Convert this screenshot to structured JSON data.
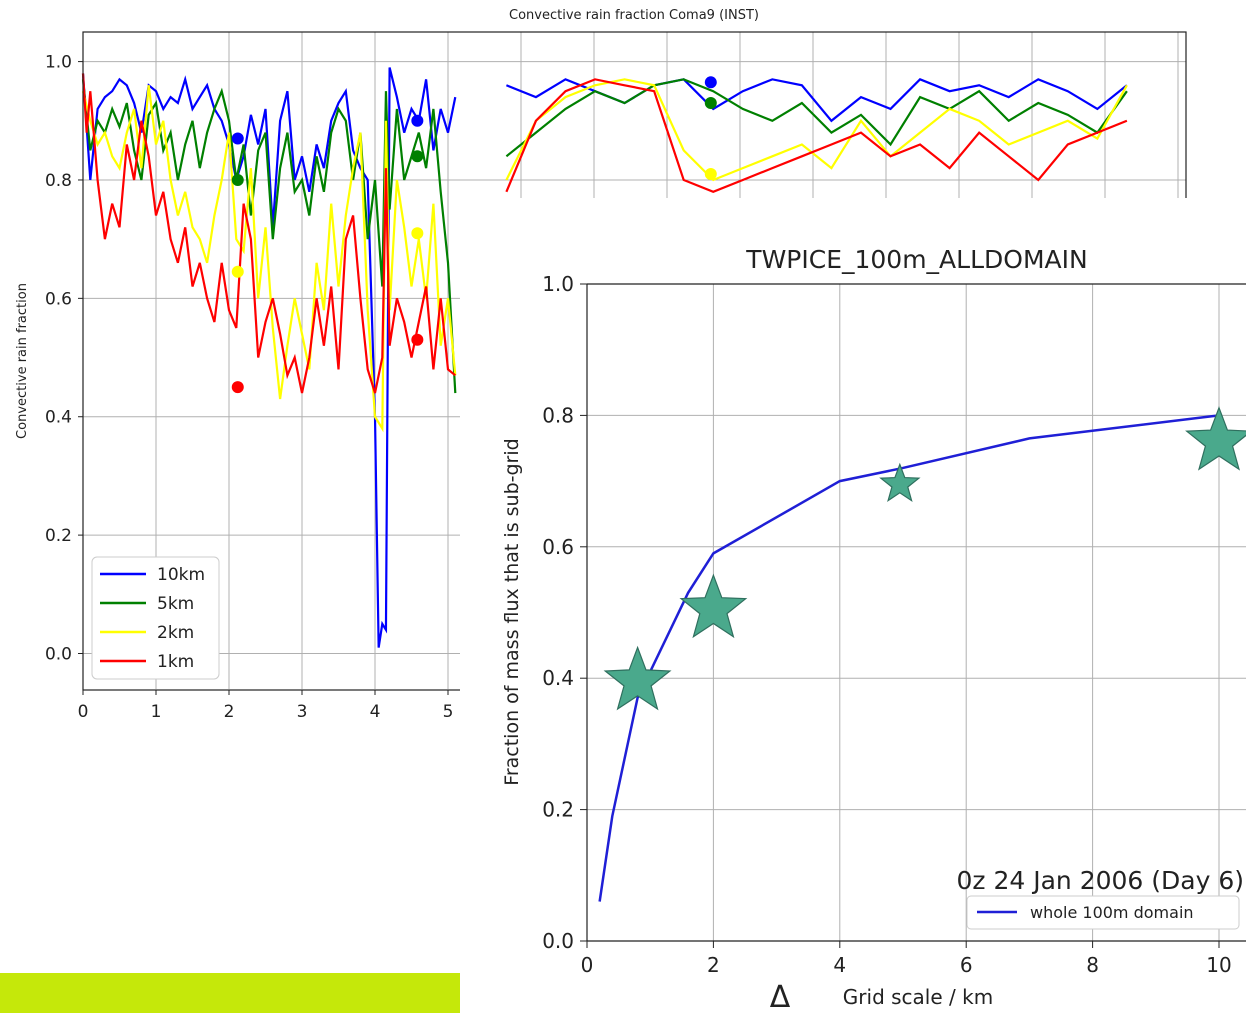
{
  "colors": {
    "accent_bar": "#c5e80a",
    "star_fill": "#4aa98c",
    "star_edge": "#2f6f5e",
    "line_blue": "#1f1fd6"
  },
  "chart_data": [
    {
      "type": "line",
      "title": "Convective rain fraction Coma9 (INST)",
      "xlabel": "",
      "ylabel": "Convective rain fraction",
      "xlim": [
        0,
        5.1
      ],
      "ylim": [
        -0.06,
        1.05
      ],
      "xticks": [
        "0",
        "1",
        "2",
        "3",
        "4",
        "5"
      ],
      "yticks": [
        "0.0",
        "0.2",
        "0.4",
        "0.6",
        "0.8",
        "1.0"
      ],
      "grid": true,
      "legend_position": "lower-left",
      "series": [
        {
          "name": "10km",
          "color": "#0000ff",
          "x": [
            0,
            0.1,
            0.2,
            0.3,
            0.4,
            0.5,
            0.6,
            0.7,
            0.8,
            0.9,
            1.0,
            1.1,
            1.2,
            1.3,
            1.4,
            1.5,
            1.6,
            1.7,
            1.8,
            1.9,
            2.0,
            2.1,
            2.2,
            2.3,
            2.4,
            2.5,
            2.6,
            2.7,
            2.8,
            2.9,
            3.0,
            3.1,
            3.2,
            3.3,
            3.4,
            3.5,
            3.6,
            3.7,
            3.8,
            3.9,
            4.0,
            4.05,
            4.1,
            4.15,
            4.2,
            4.3,
            4.4,
            4.5,
            4.6,
            4.7,
            4.8,
            4.9,
            5.0,
            5.1
          ],
          "y": [
            0.98,
            0.8,
            0.92,
            0.94,
            0.95,
            0.97,
            0.96,
            0.93,
            0.88,
            0.96,
            0.95,
            0.92,
            0.94,
            0.93,
            0.97,
            0.92,
            0.94,
            0.96,
            0.92,
            0.9,
            0.86,
            0.8,
            0.84,
            0.91,
            0.86,
            0.92,
            0.72,
            0.9,
            0.95,
            0.8,
            0.84,
            0.78,
            0.86,
            0.82,
            0.9,
            0.93,
            0.95,
            0.85,
            0.82,
            0.8,
            0.4,
            0.01,
            0.05,
            0.04,
            0.99,
            0.94,
            0.88,
            0.92,
            0.9,
            0.97,
            0.85,
            0.92,
            0.88,
            0.94
          ]
        },
        {
          "name": "5km",
          "color": "#008000",
          "x": [
            0,
            0.1,
            0.2,
            0.3,
            0.4,
            0.5,
            0.6,
            0.7,
            0.8,
            0.9,
            1.0,
            1.1,
            1.2,
            1.3,
            1.4,
            1.5,
            1.6,
            1.7,
            1.8,
            1.9,
            2.0,
            2.1,
            2.2,
            2.3,
            2.4,
            2.5,
            2.6,
            2.7,
            2.8,
            2.9,
            3.0,
            3.1,
            3.2,
            3.3,
            3.4,
            3.5,
            3.6,
            3.7,
            3.8,
            3.9,
            4.0,
            4.1,
            4.15,
            4.2,
            4.3,
            4.4,
            4.5,
            4.6,
            4.7,
            4.8,
            4.9,
            5.0,
            5.1
          ],
          "y": [
            0.97,
            0.85,
            0.9,
            0.88,
            0.92,
            0.89,
            0.93,
            0.85,
            0.8,
            0.91,
            0.93,
            0.85,
            0.88,
            0.8,
            0.86,
            0.9,
            0.82,
            0.88,
            0.92,
            0.95,
            0.9,
            0.8,
            0.86,
            0.74,
            0.85,
            0.88,
            0.7,
            0.82,
            0.88,
            0.78,
            0.8,
            0.74,
            0.84,
            0.78,
            0.88,
            0.92,
            0.9,
            0.8,
            0.88,
            0.7,
            0.8,
            0.62,
            0.95,
            0.75,
            0.92,
            0.8,
            0.84,
            0.88,
            0.82,
            0.92,
            0.78,
            0.66,
            0.44
          ]
        },
        {
          "name": "2km",
          "color": "#ffff00",
          "x": [
            0,
            0.1,
            0.2,
            0.3,
            0.4,
            0.5,
            0.6,
            0.7,
            0.8,
            0.9,
            1.0,
            1.1,
            1.2,
            1.3,
            1.4,
            1.5,
            1.6,
            1.7,
            1.8,
            1.9,
            2.0,
            2.1,
            2.2,
            2.3,
            2.4,
            2.5,
            2.6,
            2.7,
            2.8,
            2.9,
            3.0,
            3.1,
            3.2,
            3.3,
            3.4,
            3.5,
            3.6,
            3.7,
            3.8,
            3.9,
            4.0,
            4.1,
            4.15,
            4.2,
            4.3,
            4.4,
            4.5,
            4.6,
            4.7,
            4.8,
            4.9,
            5.0,
            5.1
          ],
          "y": [
            0.95,
            0.9,
            0.86,
            0.88,
            0.84,
            0.82,
            0.88,
            0.92,
            0.82,
            0.96,
            0.86,
            0.9,
            0.8,
            0.74,
            0.78,
            0.72,
            0.7,
            0.66,
            0.74,
            0.8,
            0.88,
            0.7,
            0.68,
            0.82,
            0.6,
            0.72,
            0.55,
            0.43,
            0.52,
            0.6,
            0.54,
            0.48,
            0.66,
            0.58,
            0.76,
            0.62,
            0.74,
            0.82,
            0.88,
            0.58,
            0.4,
            0.38,
            0.9,
            0.58,
            0.8,
            0.72,
            0.62,
            0.7,
            0.6,
            0.76,
            0.52,
            0.6,
            0.47
          ]
        },
        {
          "name": "1km",
          "color": "#ff0000",
          "x": [
            0,
            0.05,
            0.1,
            0.2,
            0.3,
            0.4,
            0.5,
            0.6,
            0.7,
            0.8,
            0.9,
            1.0,
            1.1,
            1.2,
            1.3,
            1.4,
            1.5,
            1.6,
            1.7,
            1.8,
            1.9,
            2.0,
            2.1,
            2.2,
            2.3,
            2.4,
            2.5,
            2.6,
            2.7,
            2.8,
            2.9,
            3.0,
            3.1,
            3.2,
            3.3,
            3.4,
            3.5,
            3.6,
            3.7,
            3.8,
            3.9,
            4.0,
            4.1,
            4.15,
            4.2,
            4.3,
            4.4,
            4.5,
            4.6,
            4.7,
            4.8,
            4.9,
            5.0,
            5.1
          ],
          "y": [
            0.98,
            0.88,
            0.95,
            0.8,
            0.7,
            0.76,
            0.72,
            0.86,
            0.8,
            0.9,
            0.84,
            0.74,
            0.78,
            0.7,
            0.66,
            0.72,
            0.62,
            0.66,
            0.6,
            0.56,
            0.66,
            0.58,
            0.55,
            0.76,
            0.7,
            0.5,
            0.56,
            0.6,
            0.54,
            0.47,
            0.5,
            0.44,
            0.5,
            0.6,
            0.52,
            0.62,
            0.48,
            0.7,
            0.74,
            0.6,
            0.48,
            0.44,
            0.5,
            0.82,
            0.52,
            0.6,
            0.56,
            0.5,
            0.56,
            0.62,
            0.48,
            0.6,
            0.48,
            0.47
          ]
        }
      ],
      "markers": [
        {
          "series": "10km",
          "x": 2.12,
          "y": 0.87
        },
        {
          "series": "5km",
          "x": 2.12,
          "y": 0.8
        },
        {
          "series": "2km",
          "x": 2.12,
          "y": 0.645
        },
        {
          "series": "1km",
          "x": 2.12,
          "y": 0.45
        },
        {
          "series": "10km",
          "x": 4.58,
          "y": 0.9
        },
        {
          "series": "5km",
          "x": 4.58,
          "y": 0.84
        },
        {
          "series": "2km",
          "x": 4.58,
          "y": 0.71
        },
        {
          "series": "1km",
          "x": 4.58,
          "y": 0.53
        }
      ],
      "hidden_right_part": {
        "note_series": [
          {
            "name": "10km",
            "color": "#0000ff",
            "y": [
              0.96,
              0.94,
              0.97,
              0.95,
              0.93,
              0.96,
              0.97,
              0.92,
              0.95,
              0.97,
              0.96,
              0.9,
              0.94,
              0.92,
              0.97,
              0.95,
              0.96,
              0.94,
              0.97,
              0.95,
              0.92,
              0.96
            ]
          },
          {
            "name": "5km",
            "color": "#008000",
            "y": [
              0.84,
              0.88,
              0.92,
              0.95,
              0.93,
              0.96,
              0.97,
              0.95,
              0.92,
              0.9,
              0.93,
              0.88,
              0.91,
              0.86,
              0.94,
              0.92,
              0.95,
              0.9,
              0.93,
              0.91,
              0.88,
              0.95
            ]
          },
          {
            "name": "2km",
            "color": "#ffff00",
            "y": [
              0.8,
              0.9,
              0.94,
              0.96,
              0.97,
              0.96,
              0.85,
              0.8,
              0.82,
              0.84,
              0.86,
              0.82,
              0.9,
              0.84,
              0.88,
              0.92,
              0.9,
              0.86,
              0.88,
              0.9,
              0.87,
              0.96
            ]
          },
          {
            "name": "1km",
            "color": "#ff0000",
            "y": [
              0.78,
              0.9,
              0.95,
              0.97,
              0.96,
              0.95,
              0.8,
              0.78,
              0.8,
              0.82,
              0.84,
              0.86,
              0.88,
              0.84,
              0.86,
              0.82,
              0.88,
              0.84,
              0.8,
              0.86,
              0.88,
              0.9
            ]
          }
        ],
        "x_start": 5.8,
        "x_end": 14.3,
        "markers": [
          {
            "series": "10km",
            "x": 8.6,
            "y": 0.965
          },
          {
            "series": "5km",
            "x": 8.6,
            "y": 0.93
          },
          {
            "series": "2km",
            "x": 8.6,
            "y": 0.81
          }
        ]
      }
    },
    {
      "type": "line",
      "title": "TWPICE_100m_ALLDOMAIN",
      "xlabel": "Grid scale / km",
      "xlabel_symbol": "Δ",
      "ylabel": "Fraction of mass flux that is sub-grid",
      "xlim": [
        0,
        10.4
      ],
      "ylim": [
        0,
        1.0
      ],
      "xticks": [
        "0",
        "2",
        "4",
        "6",
        "8",
        "10"
      ],
      "yticks": [
        "0.0",
        "0.2",
        "0.4",
        "0.6",
        "0.8",
        "1.0"
      ],
      "grid": true,
      "annotation": "0z 24 Jan 2006 (Day 6)",
      "legend_position": "lower-right",
      "series": [
        {
          "name": "whole 100m domain",
          "color": "#1f1fd6",
          "x": [
            0.2,
            0.4,
            0.8,
            1.6,
            2.0,
            4.0,
            5.0,
            7.0,
            10.0
          ],
          "y": [
            0.06,
            0.19,
            0.37,
            0.53,
            0.59,
            0.7,
            0.72,
            0.765,
            0.8
          ]
        }
      ],
      "stars": {
        "x": [
          0.8,
          2.0,
          4.95,
          10.0
        ],
        "y": [
          0.395,
          0.505,
          0.695,
          0.76
        ]
      }
    }
  ]
}
